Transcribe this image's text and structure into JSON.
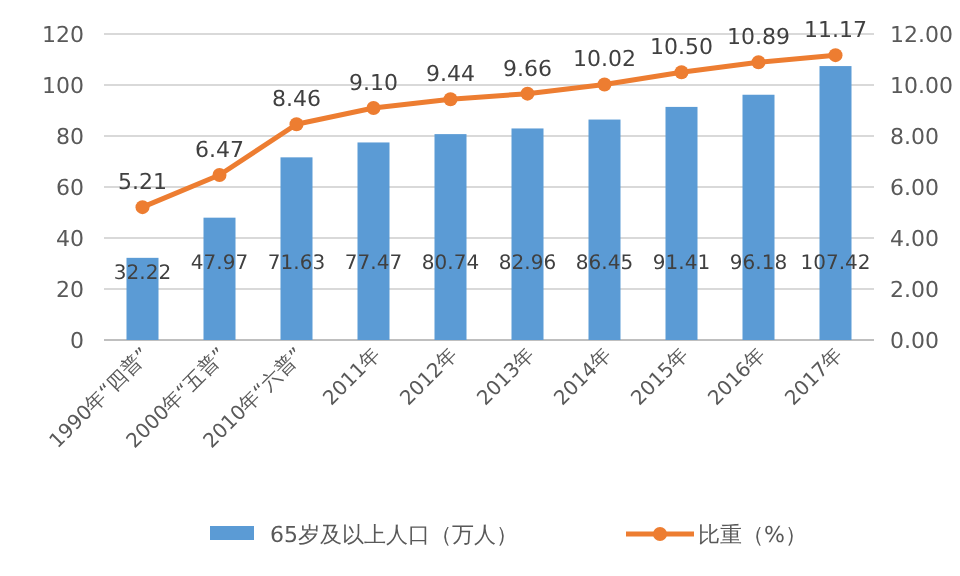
{
  "chart_data": {
    "type": "bar",
    "categories": [
      "1990年“四普”",
      "2000年“五普”",
      "2010年“六普”",
      "2011年",
      "2012年",
      "2013年",
      "2014年",
      "2015年",
      "2016年",
      "2017年"
    ],
    "series": [
      {
        "name": "65岁及以上人口（万人）",
        "color": "#5b9bd5",
        "values": [
          32.22,
          47.97,
          71.63,
          77.47,
          80.74,
          82.96,
          86.45,
          91.41,
          96.18,
          107.42
        ],
        "value_labels": [
          "32.22",
          "47.97",
          "71.63",
          "77.47",
          "80.74",
          "82.96",
          "86.45",
          "91.41",
          "96.18",
          "107.42"
        ]
      },
      {
        "name": "比重（%）",
        "type": "line",
        "axis": "y2",
        "color": "#ed7d31",
        "marker": "circle",
        "values": [
          5.21,
          6.47,
          8.46,
          9.1,
          9.44,
          9.66,
          10.02,
          10.5,
          10.89,
          11.17
        ],
        "value_labels": [
          "5.21",
          "6.47",
          "8.46",
          "9.10",
          "9.44",
          "9.66",
          "10.02",
          "10.50",
          "10.89",
          "11.17"
        ]
      }
    ],
    "ylim": [
      0,
      120
    ],
    "yticks": [
      0,
      20,
      40,
      60,
      80,
      100,
      120
    ],
    "y2lim": [
      0,
      12
    ],
    "y2ticks": [
      {
        "value": 0,
        "label": "0.00"
      },
      {
        "value": 2,
        "label": "2.00"
      },
      {
        "value": 4,
        "label": "4.00"
      },
      {
        "value": 6,
        "label": "6.00"
      },
      {
        "value": 8,
        "label": "8.00"
      },
      {
        "value": 10,
        "label": "10.00"
      },
      {
        "value": 12,
        "label": "12.00"
      }
    ],
    "grid": "y",
    "legend": "bottom"
  }
}
